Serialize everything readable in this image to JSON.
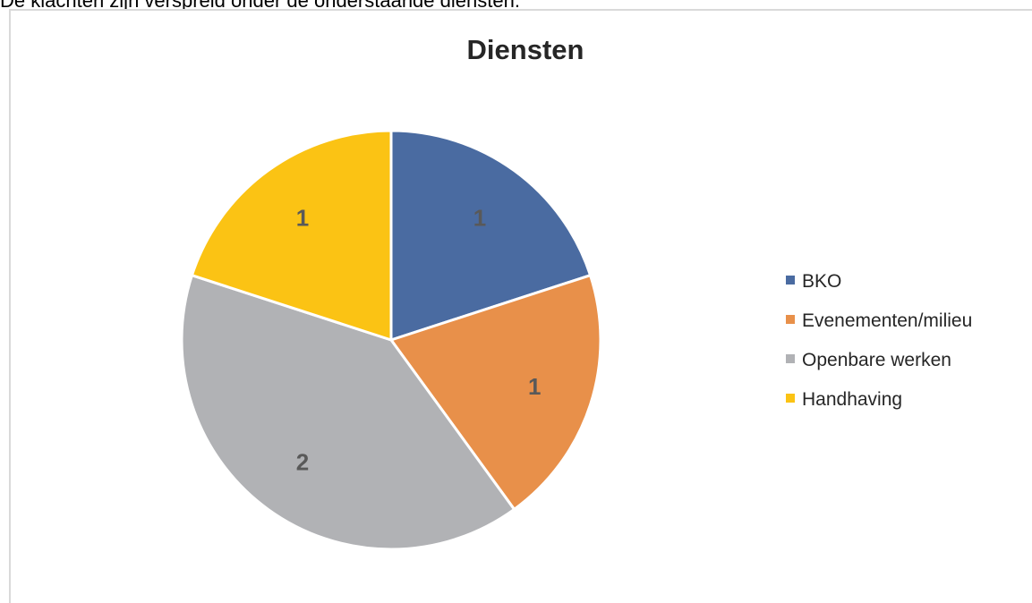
{
  "intro_text": "De klachten zijn verspreid onder de onderstaande diensten.",
  "chart_data": {
    "type": "pie",
    "title": "Diensten",
    "categories": [
      "BKO",
      "Evenementen/milieu",
      "Openbare werken",
      "Handhaving"
    ],
    "values": [
      1,
      1,
      2,
      1
    ],
    "data_labels": [
      "1",
      "1",
      "2",
      "1"
    ],
    "colors": [
      "#4a6ba1",
      "#e8904a",
      "#b1b2b5",
      "#fbc314"
    ],
    "legend_position": "right"
  }
}
